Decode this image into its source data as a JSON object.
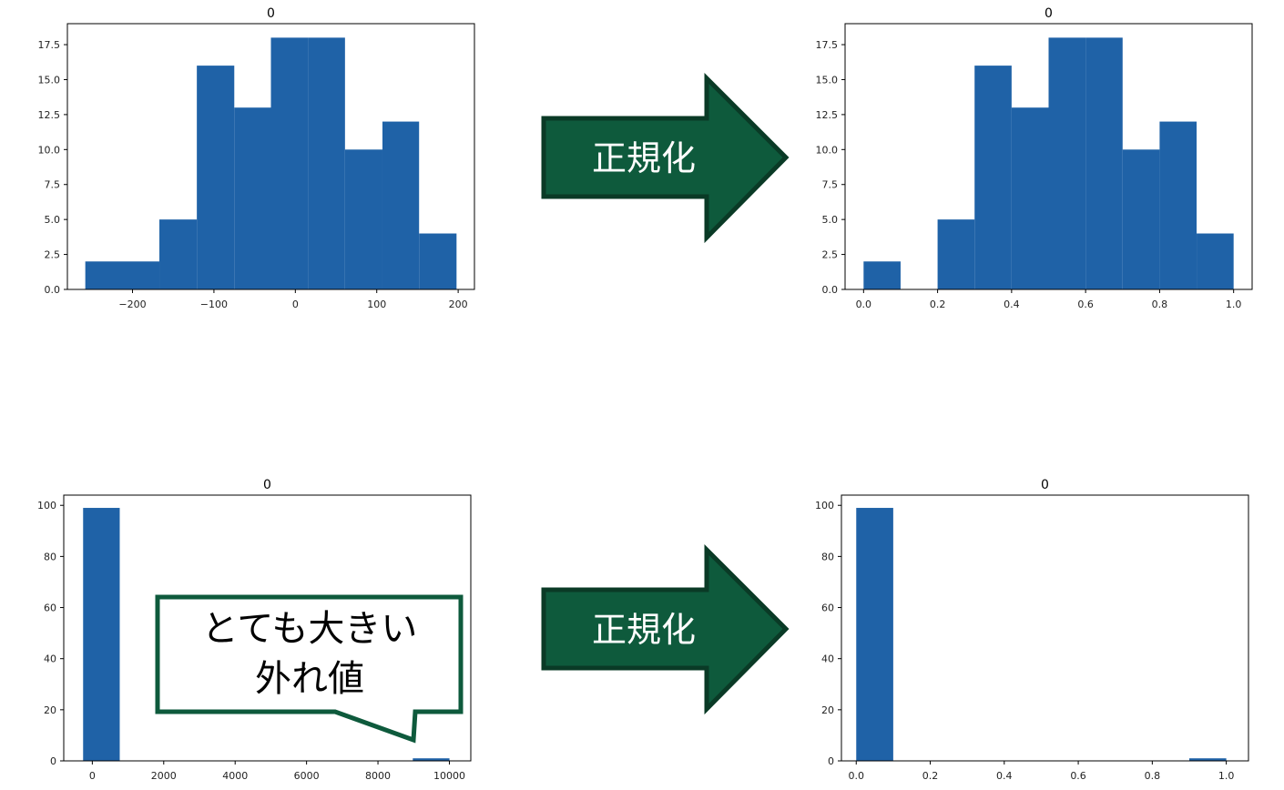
{
  "chart_data": [
    {
      "type": "bar",
      "title": "0",
      "xlabel": "",
      "ylabel": "",
      "xlim": [
        -280,
        220
      ],
      "ylim": [
        0,
        19
      ],
      "xticks": [
        -200,
        -100,
        0,
        100,
        200
      ],
      "xtick_labels": [
        "−200",
        "−100",
        "0",
        "100",
        "200"
      ],
      "yticks": [
        0,
        2.5,
        5,
        7.5,
        10,
        12.5,
        15,
        17.5
      ],
      "ytick_labels": [
        "0.0",
        "2.5",
        "5.0",
        "7.5",
        "10.0",
        "12.5",
        "15.0",
        "17.5"
      ],
      "bin_edges": [
        -258,
        -167,
        -121,
        -75,
        -30,
        16,
        61,
        107,
        152,
        198
      ],
      "values": [
        2,
        5,
        16,
        13,
        18,
        18,
        10,
        12,
        4
      ],
      "color": "#1f62a7",
      "grid": false
    },
    {
      "type": "bar",
      "title": "0",
      "xlabel": "",
      "ylabel": "",
      "xlim": [
        -0.05,
        1.05
      ],
      "ylim": [
        0,
        19
      ],
      "xticks": [
        0,
        0.2,
        0.4,
        0.6,
        0.8,
        1.0
      ],
      "xtick_labels": [
        "0.0",
        "0.2",
        "0.4",
        "0.6",
        "0.8",
        "1.0"
      ],
      "yticks": [
        0,
        2.5,
        5,
        7.5,
        10,
        12.5,
        15,
        17.5
      ],
      "ytick_labels": [
        "0.0",
        "2.5",
        "5.0",
        "7.5",
        "10.0",
        "12.5",
        "15.0",
        "17.5"
      ],
      "bin_edges": [
        0,
        0.1,
        0.2,
        0.3,
        0.4,
        0.5,
        0.6,
        0.7,
        0.8,
        0.9,
        1.0
      ],
      "values": [
        2,
        0,
        5,
        16,
        13,
        18,
        18,
        10,
        12,
        4
      ],
      "color": "#1f62a7",
      "grid": false
    },
    {
      "type": "bar",
      "title": "0",
      "xlabel": "",
      "ylabel": "",
      "xlim": [
        -800,
        10600
      ],
      "ylim": [
        0,
        104
      ],
      "xticks": [
        0,
        2000,
        4000,
        6000,
        8000,
        10000
      ],
      "xtick_labels": [
        "0",
        "2000",
        "4000",
        "6000",
        "8000",
        "10000"
      ],
      "yticks": [
        0,
        20,
        40,
        60,
        80,
        100
      ],
      "ytick_labels": [
        "0",
        "20",
        "40",
        "60",
        "80",
        "100"
      ],
      "bin_edges": [
        -258,
        768,
        1794,
        2820,
        3846,
        4872,
        5898,
        6924,
        7950,
        8976,
        10002
      ],
      "values": [
        99,
        0,
        0,
        0,
        0,
        0,
        0,
        0,
        0,
        1
      ],
      "color": "#1f62a7",
      "grid": false
    },
    {
      "type": "bar",
      "title": "0",
      "xlabel": "",
      "ylabel": "",
      "xlim": [
        -0.04,
        1.06
      ],
      "ylim": [
        0,
        104
      ],
      "xticks": [
        0,
        0.2,
        0.4,
        0.6,
        0.8,
        1.0
      ],
      "xtick_labels": [
        "0.0",
        "0.2",
        "0.4",
        "0.6",
        "0.8",
        "1.0"
      ],
      "yticks": [
        0,
        20,
        40,
        60,
        80,
        100
      ],
      "ytick_labels": [
        "0",
        "20",
        "40",
        "60",
        "80",
        "100"
      ],
      "bin_edges": [
        0,
        0.1,
        0.2,
        0.3,
        0.4,
        0.5,
        0.6,
        0.7,
        0.8,
        0.9,
        1.0
      ],
      "values": [
        99,
        0,
        0,
        0,
        0,
        0,
        0,
        0,
        0,
        1
      ],
      "color": "#1f62a7",
      "grid": false
    }
  ],
  "arrows": [
    {
      "label": "正規化",
      "fill": "#0e5a3c",
      "stroke": "#0a3a26"
    },
    {
      "label": "正規化",
      "fill": "#0e5a3c",
      "stroke": "#0a3a26"
    }
  ],
  "callout": {
    "lines": [
      "とても大きい",
      "外れ値"
    ],
    "border": "#0e5a3c"
  }
}
